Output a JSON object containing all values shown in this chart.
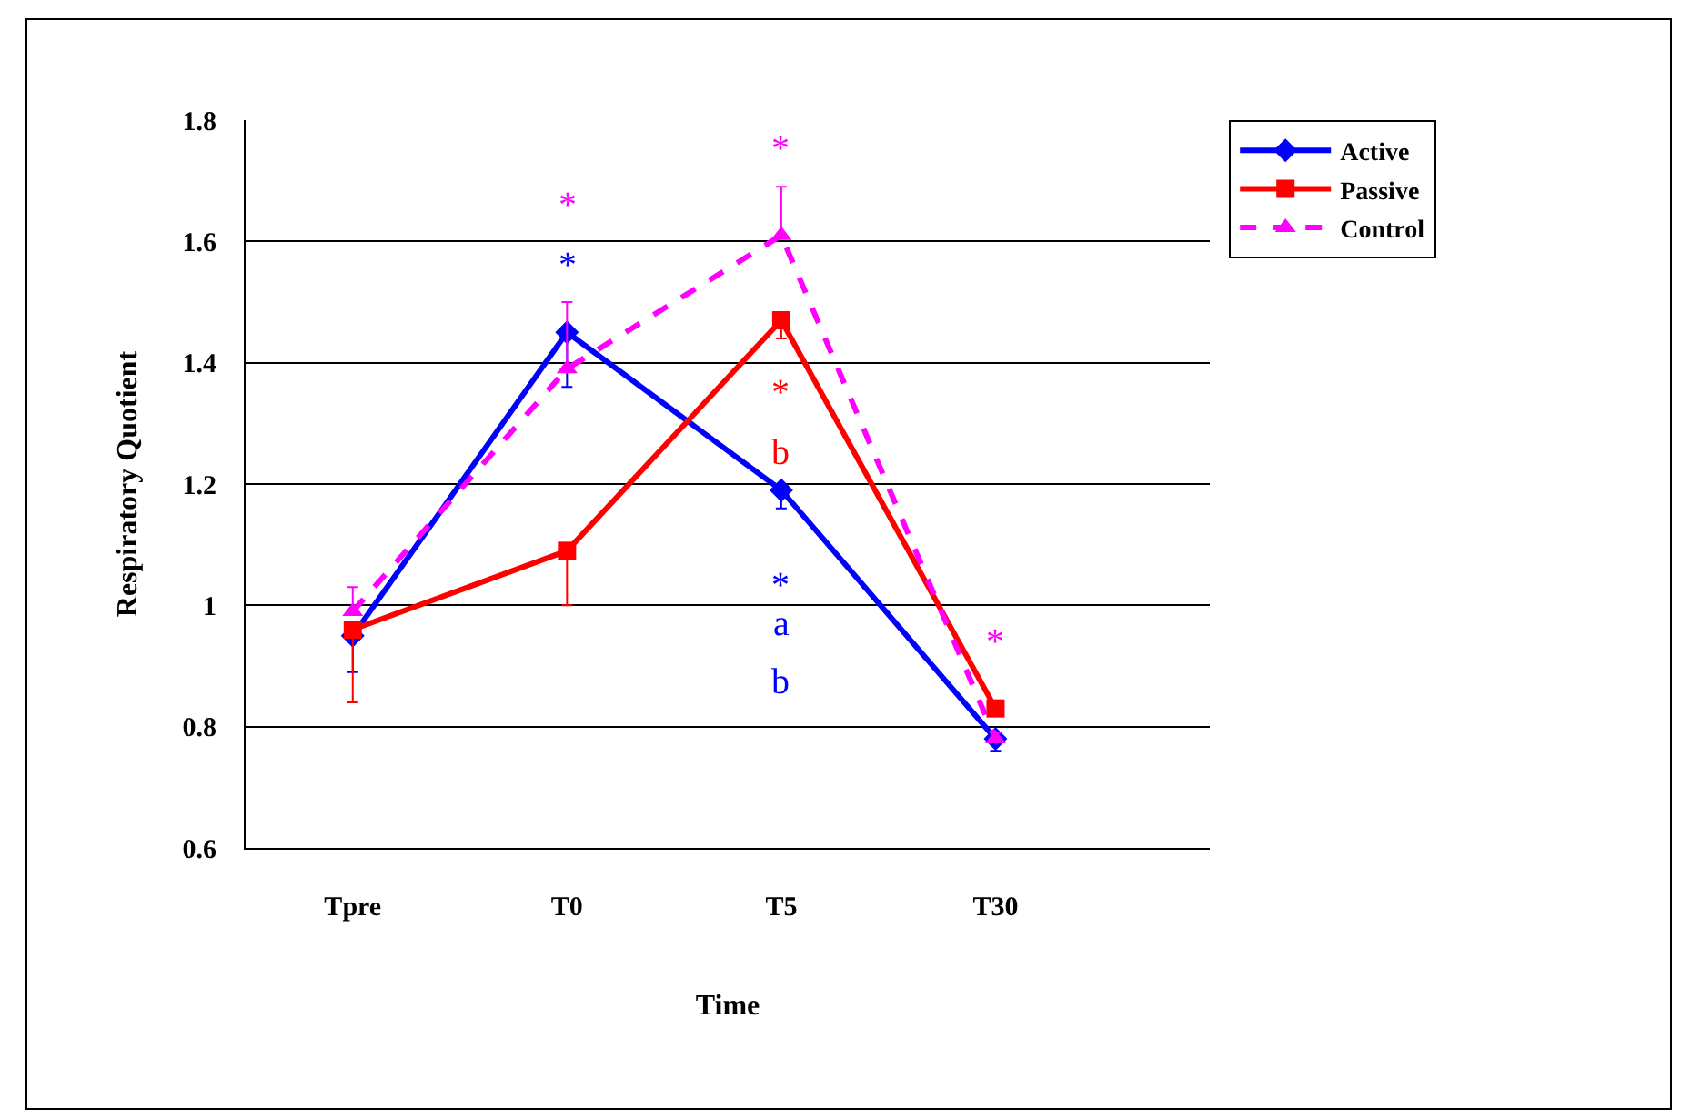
{
  "chart_data": {
    "type": "line",
    "xlabel": "Time",
    "ylabel": "Respiratory Quotient",
    "categories": [
      "Tpre",
      "T0",
      "T5",
      "T30"
    ],
    "series": [
      {
        "name": "Active",
        "color": "#0000ff",
        "marker": "diamond",
        "line_style": "solid",
        "values": [
          0.95,
          1.45,
          1.19,
          0.78
        ],
        "errors": [
          [
            0.89,
            0.95
          ],
          [
            1.36,
            1.45
          ],
          [
            1.16,
            1.19
          ],
          [
            0.76,
            0.78
          ]
        ]
      },
      {
        "name": "Passive",
        "color": "#ff0000",
        "marker": "square",
        "line_style": "solid",
        "values": [
          0.96,
          1.09,
          1.47,
          0.83
        ],
        "errors": [
          [
            0.84,
            0.96
          ],
          [
            1.0,
            1.09
          ],
          [
            1.44,
            1.47
          ],
          [
            0.82,
            0.83
          ]
        ]
      },
      {
        "name": "Control",
        "color": "#ff00ff",
        "marker": "triangle",
        "line_style": "dashed",
        "values": [
          0.99,
          1.39,
          1.61,
          0.78
        ],
        "errors": [
          [
            0.99,
            1.03
          ],
          [
            1.39,
            1.5
          ],
          [
            1.61,
            1.69
          ],
          [
            0.78,
            0.79
          ]
        ]
      }
    ],
    "annotations": [
      {
        "text": "*",
        "x": "T0",
        "y": 1.39
      },
      {
        "text": "*",
        "x": "T0",
        "y": 1.45
      },
      {
        "text": "*",
        "x": "T5",
        "y": 1.61
      },
      {
        "text": "*",
        "x": "T5",
        "y": 1.47
      },
      "b",
      {
        "text": "*",
        "x": "T5",
        "y": 1.19
      },
      "a",
      "b",
      {
        "text": "*",
        "x": "T30",
        "y": 0.78
      }
    ],
    "ylim": [
      0.6,
      1.8
    ],
    "yticks": [
      0.6,
      0.8,
      1,
      1.2,
      1.4,
      1.6,
      1.8
    ],
    "grid": "y",
    "legend": "top right"
  }
}
